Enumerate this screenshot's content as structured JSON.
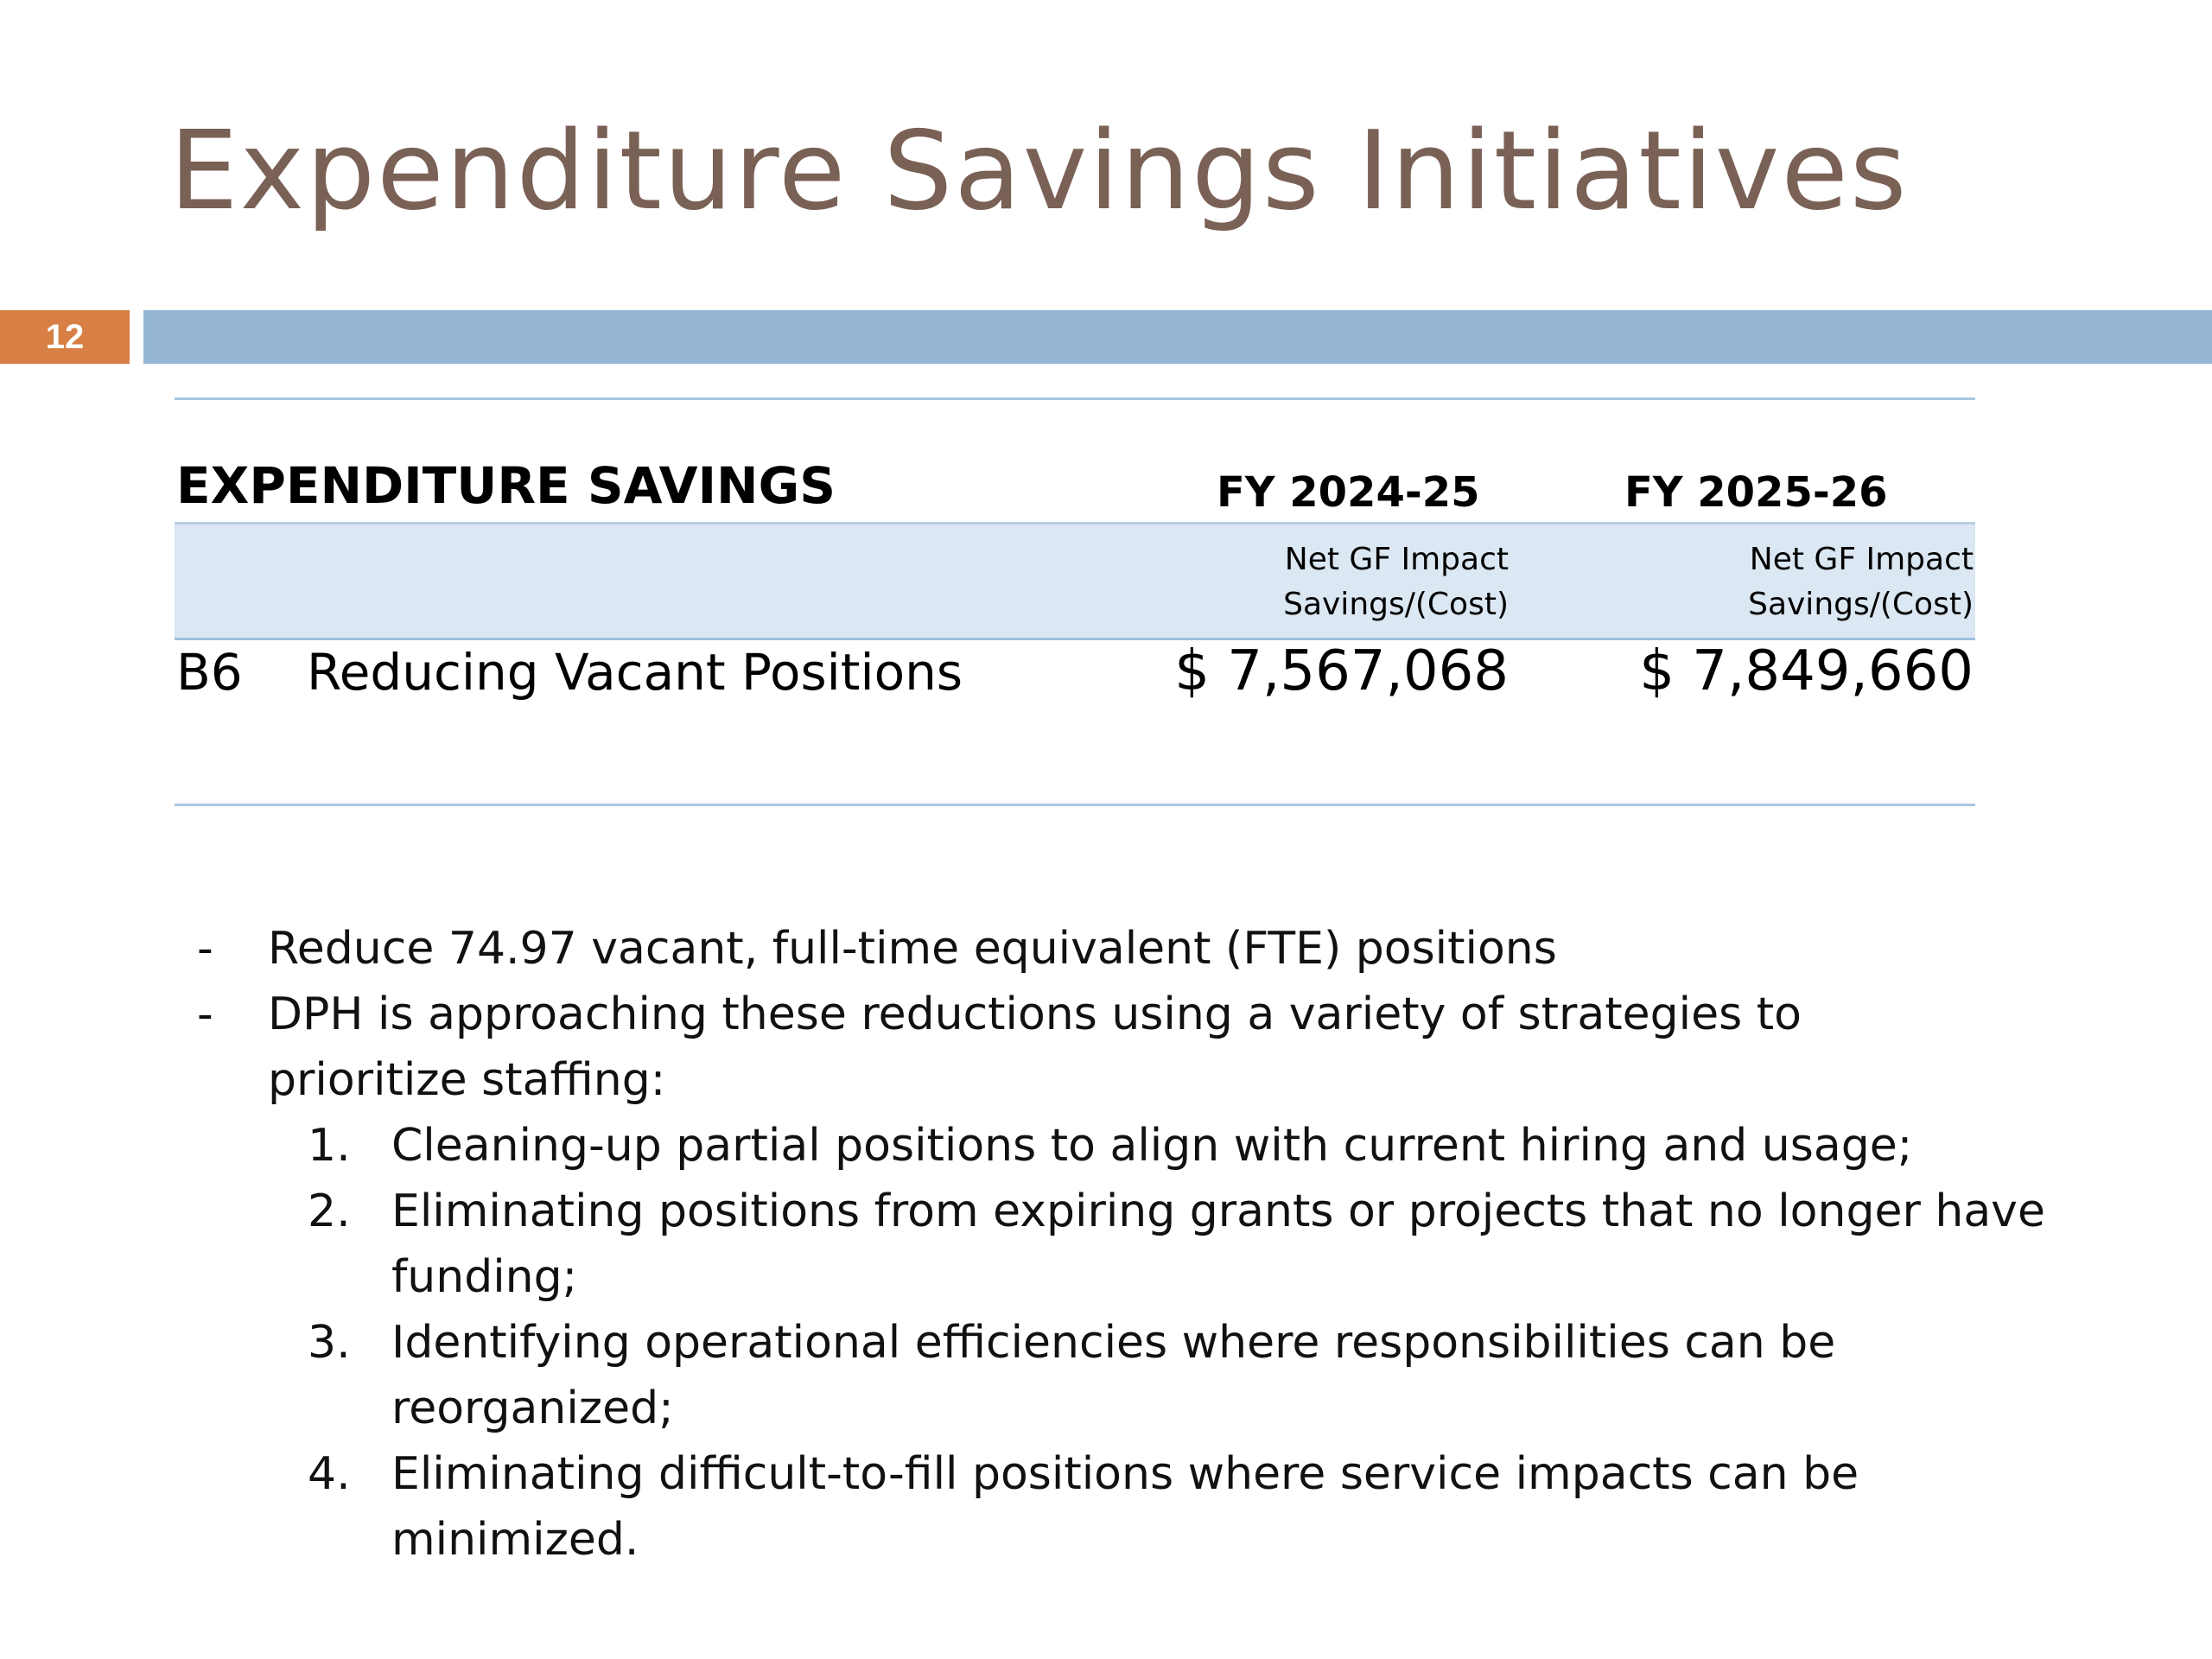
{
  "slide": {
    "title": "Expenditure Savings Initiatives",
    "number": "12"
  },
  "colors": {
    "title": "#7a6156",
    "slide_number_bg": "#d77f44",
    "accent_bar": "#94b6d4",
    "table_rule": "#a9c7e0",
    "subheader_band": "#dbe7f2"
  },
  "table": {
    "title": "EXPENDITURE SAVINGS",
    "columns": [
      {
        "header": "FY 2024-25",
        "sub_line1": "Net GF Impact",
        "sub_line2": "Savings/(Cost)"
      },
      {
        "header": "FY 2025-26",
        "sub_line1": "Net GF Impact",
        "sub_line2": "Savings/(Cost)"
      }
    ],
    "row": {
      "code": "B6",
      "label": "Reducing Vacant Positions",
      "fy2425": "$ 7,567,068",
      "fy2526": "$ 7,849,660"
    }
  },
  "bullets": [
    {
      "marker": "-",
      "text": "Reduce 74.97 vacant, full-time equivalent (FTE) positions"
    },
    {
      "marker": "-",
      "text": "DPH is approaching these reductions using a variety of strategies to prioritize staffing:"
    }
  ],
  "strategies": [
    {
      "marker": "1.",
      "text": "Cleaning-up partial positions to align with current hiring and usage;"
    },
    {
      "marker": "2.",
      "text": "Eliminating positions from expiring grants or projects that no longer have funding;"
    },
    {
      "marker": "3.",
      "text": "Identifying operational efficiencies where responsibilities can be reorganized;"
    },
    {
      "marker": "4.",
      "text": "Eliminating difficult-to-fill positions where service impacts can be minimized."
    }
  ]
}
